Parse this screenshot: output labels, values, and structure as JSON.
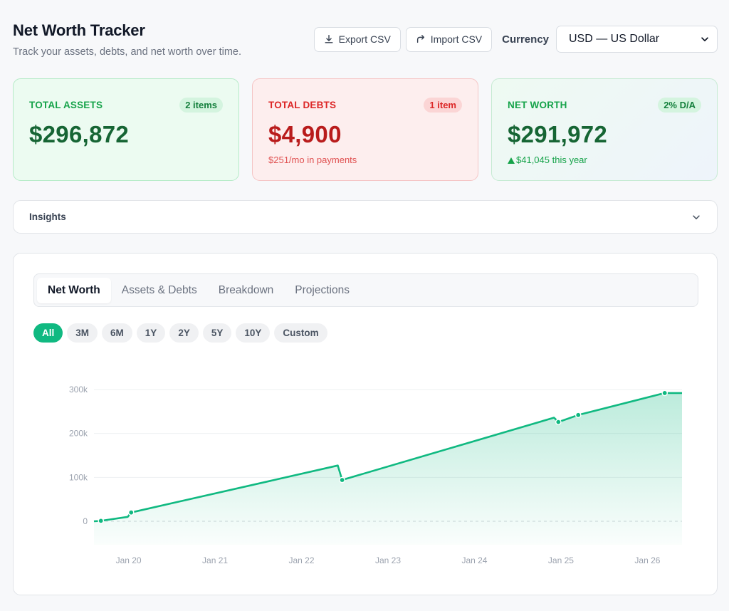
{
  "header": {
    "title": "Net Worth Tracker",
    "subtitle": "Track your assets, debts, and net worth over time."
  },
  "toolbar": {
    "export_label": "Export CSV",
    "import_label": "Import CSV",
    "currency_label": "Currency",
    "currency_value": "USD — US Dollar"
  },
  "cards": {
    "assets": {
      "label": "TOTAL ASSETS",
      "pill": "2 items",
      "value": "$296,872"
    },
    "debts": {
      "label": "TOTAL DEBTS",
      "pill": "1 item",
      "value": "$4,900",
      "sub": "$251/mo in payments"
    },
    "net": {
      "label": "NET WORTH",
      "pill": "2% D/A",
      "value": "$291,972",
      "sub": "$41,045 this year"
    }
  },
  "insights": {
    "label": "Insights"
  },
  "tabs": [
    "Net Worth",
    "Assets & Debts",
    "Breakdown",
    "Projections"
  ],
  "active_tab": 0,
  "ranges": [
    "All",
    "3M",
    "6M",
    "1Y",
    "2Y",
    "5Y",
    "10Y",
    "Custom"
  ],
  "active_range": 0,
  "colors": {
    "accent": "#10b981",
    "assets": "#166534",
    "debts": "#b91c1c"
  },
  "chart_data": {
    "type": "area",
    "ylim": [
      0,
      300000
    ],
    "yticks": [
      0,
      100000,
      200000,
      300000
    ],
    "ytick_labels": [
      "0",
      "100k",
      "200k",
      "300k"
    ],
    "xlim": [
      2019.6,
      2026.4
    ],
    "xticks": [
      2020,
      2021,
      2022,
      2023,
      2024,
      2025,
      2026
    ],
    "xtick_labels": [
      "Jan 20",
      "Jan 21",
      "Jan 22",
      "Jan 23",
      "Jan 24",
      "Jan 25",
      "Jan 26"
    ],
    "series": [
      {
        "values": [
          [
            2019.6,
            0
          ],
          [
            2019.68,
            1000
          ],
          [
            2019.99,
            10000
          ],
          [
            2020.03,
            20000
          ],
          [
            2022.42,
            127000
          ],
          [
            2022.47,
            94000
          ],
          [
            2024.92,
            236000
          ],
          [
            2024.97,
            226000
          ],
          [
            2025.2,
            242000
          ],
          [
            2026.2,
            292000
          ],
          [
            2026.4,
            292000
          ]
        ]
      }
    ],
    "markers": [
      [
        2019.68,
        1000
      ],
      [
        2020.03,
        20000
      ],
      [
        2022.47,
        94000
      ],
      [
        2024.97,
        226000
      ],
      [
        2025.2,
        242000
      ],
      [
        2026.2,
        292000
      ]
    ],
    "grid": true,
    "legend": "none"
  }
}
